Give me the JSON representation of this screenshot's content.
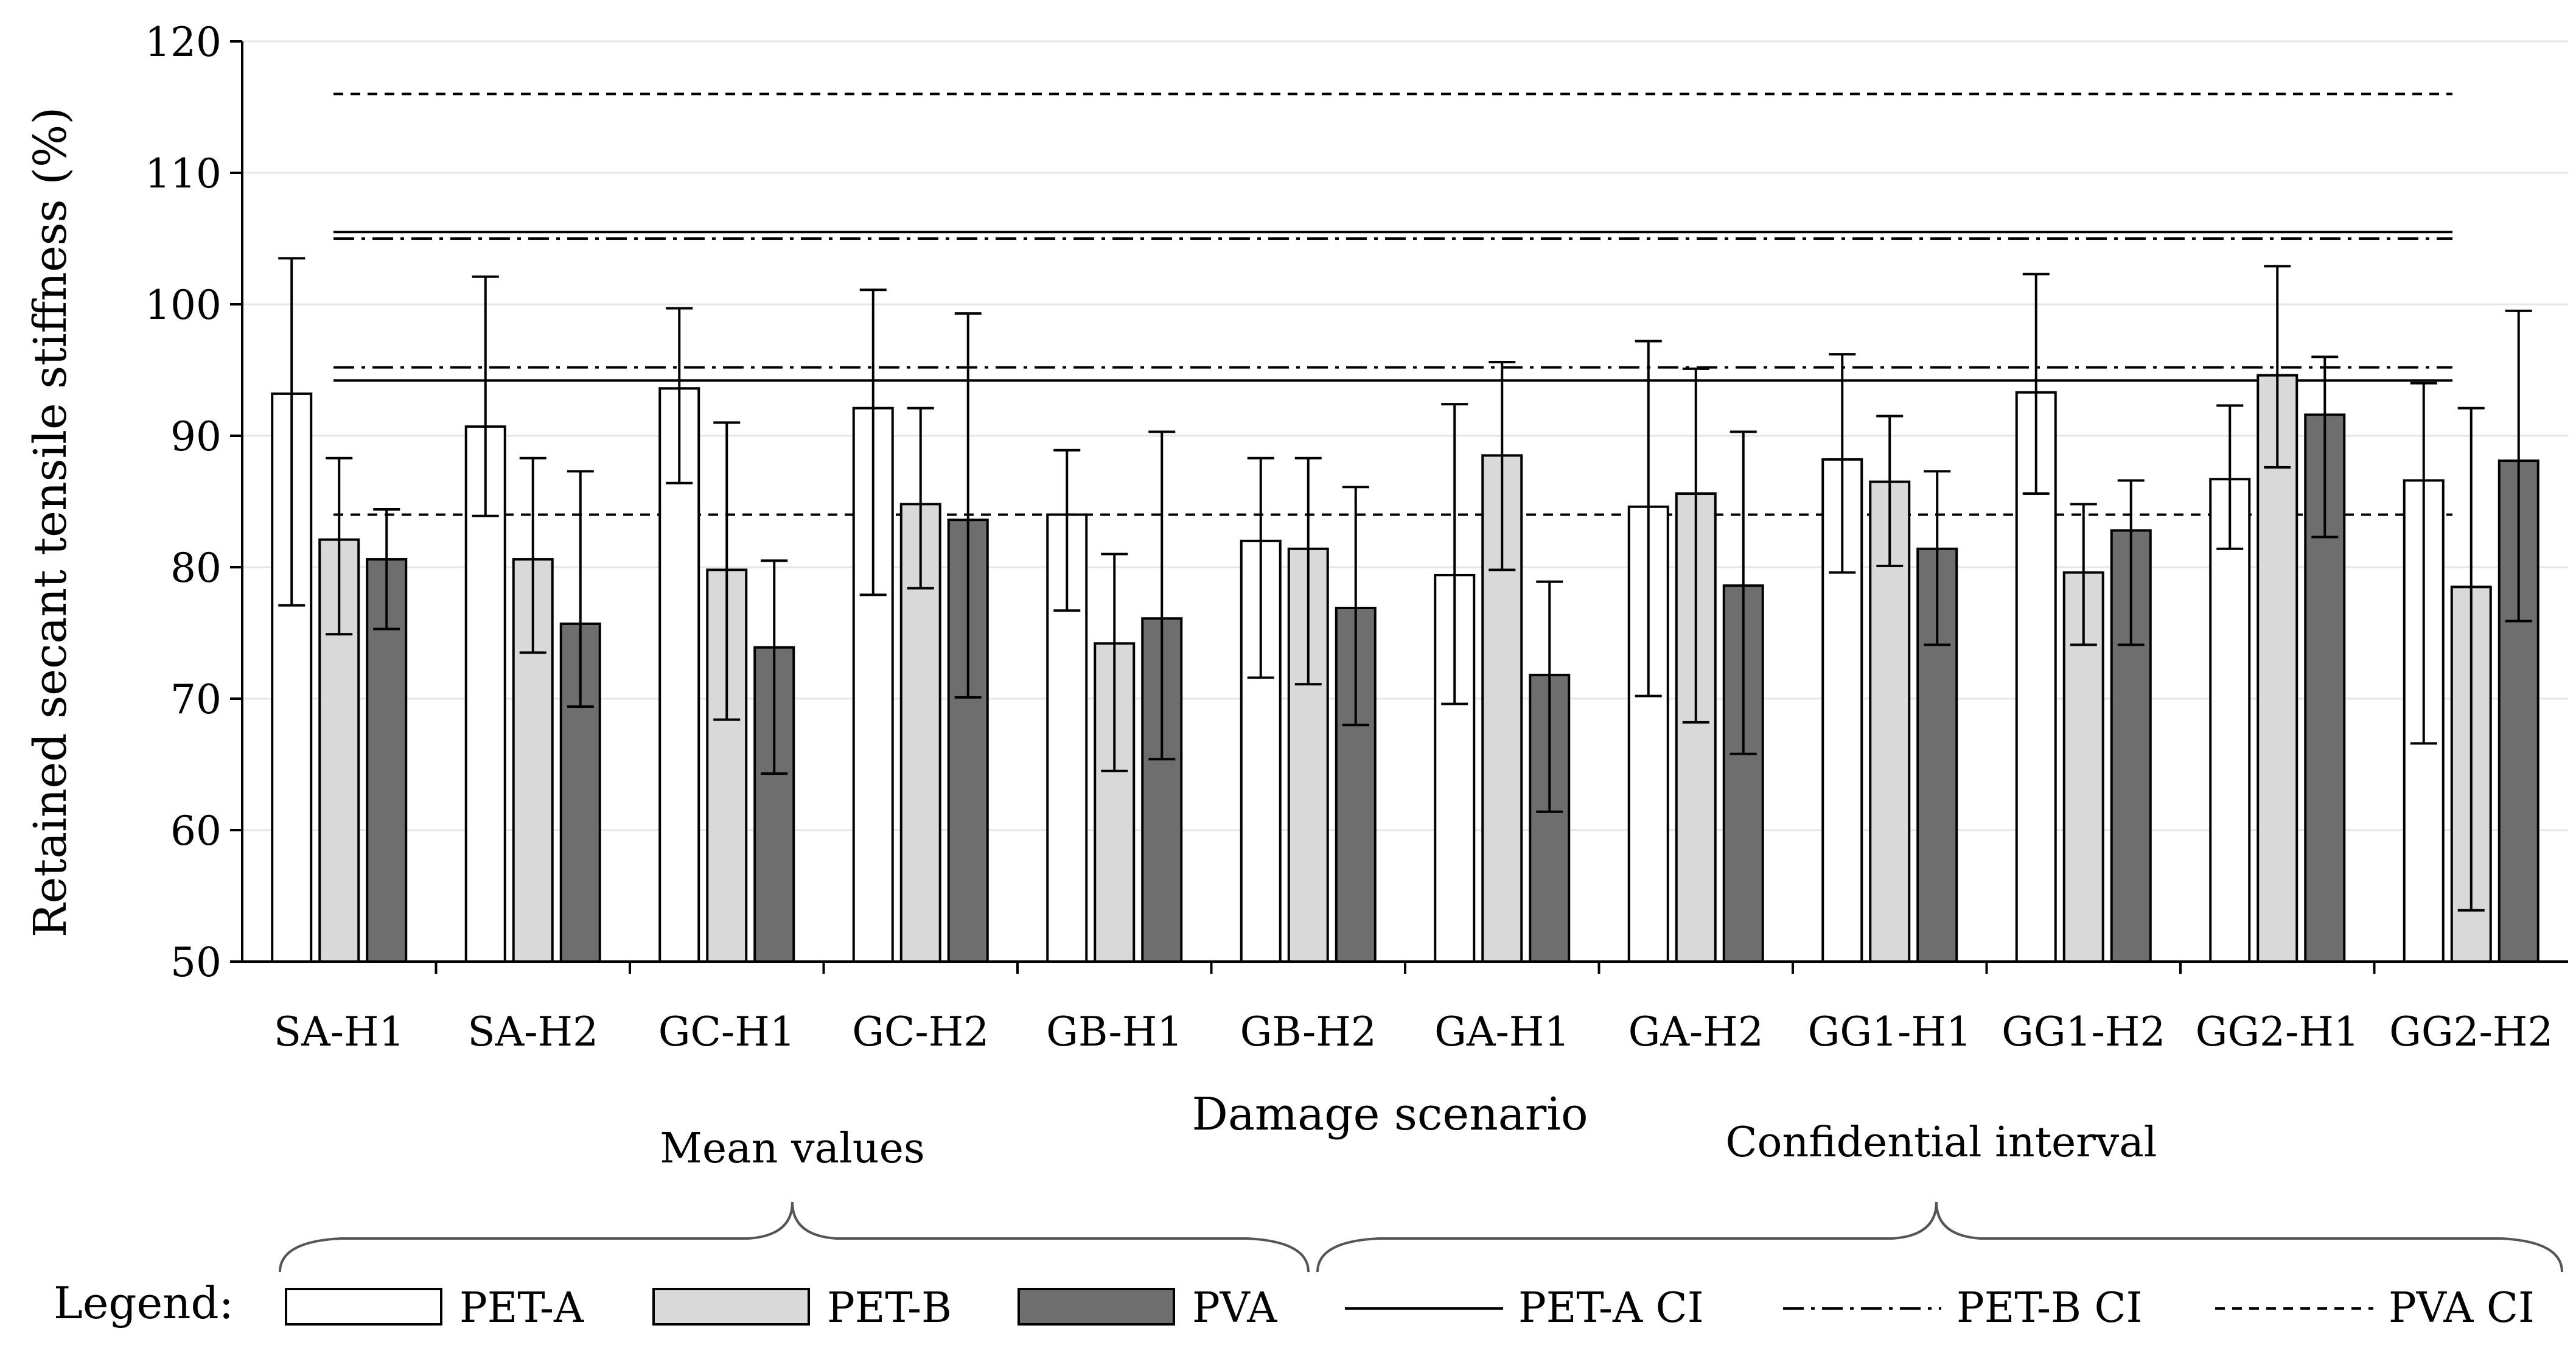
{
  "chart_data": {
    "type": "bar",
    "title": "",
    "xlabel": "Damage scenario",
    "ylabel": "Retained secant tensile stiffness (%)",
    "ylim": [
      50,
      120
    ],
    "yticks": [
      50,
      60,
      70,
      80,
      90,
      100,
      110,
      120
    ],
    "grid": true,
    "categories": [
      "SA-H1",
      "SA-H2",
      "GC-H1",
      "GC-H2",
      "GB-H1",
      "GB-H2",
      "GA-H1",
      "GA-H2",
      "GG1-H1",
      "GG1-H2",
      "GG2-H1",
      "GG2-H2"
    ],
    "series": [
      {
        "name": "PET-A",
        "color": "#ffffff",
        "values": [
          93.2,
          90.7,
          93.6,
          92.1,
          84.0,
          82.0,
          79.4,
          84.6,
          88.2,
          93.3,
          86.7,
          86.6
        ],
        "err_low": [
          77.1,
          83.9,
          86.4,
          77.9,
          76.7,
          71.6,
          69.6,
          70.2,
          79.6,
          85.6,
          81.4,
          66.6
        ],
        "err_high": [
          103.5,
          102.1,
          99.7,
          101.1,
          88.9,
          88.3,
          92.4,
          97.2,
          96.2,
          102.3,
          92.3,
          94.0
        ]
      },
      {
        "name": "PET-B",
        "color": "#d9d9d9",
        "values": [
          82.1,
          80.6,
          79.8,
          84.8,
          74.2,
          81.4,
          88.5,
          85.6,
          86.5,
          79.6,
          94.6,
          78.5
        ],
        "err_low": [
          74.9,
          73.5,
          68.4,
          78.4,
          64.5,
          71.1,
          79.8,
          68.2,
          80.1,
          74.1,
          87.6,
          53.9
        ],
        "err_high": [
          88.3,
          88.3,
          91.0,
          92.1,
          81.0,
          88.3,
          95.6,
          95.1,
          91.5,
          84.8,
          102.9,
          92.1
        ]
      },
      {
        "name": "PVA",
        "color": "#6e6e6e",
        "values": [
          80.6,
          75.7,
          73.9,
          83.6,
          76.1,
          76.9,
          71.8,
          78.6,
          81.4,
          82.8,
          91.6,
          88.1
        ],
        "err_low": [
          75.3,
          69.4,
          64.3,
          70.1,
          65.4,
          68.0,
          61.4,
          65.8,
          74.1,
          74.1,
          82.3,
          75.9
        ],
        "err_high": [
          84.4,
          87.3,
          80.5,
          99.3,
          90.3,
          86.1,
          78.9,
          90.3,
          87.3,
          86.6,
          96.0,
          99.5
        ]
      }
    ],
    "ci_lines": [
      {
        "name": "PET-A CI",
        "style": "solid",
        "values": [
          94.2,
          105.5
        ]
      },
      {
        "name": "PET-B CI",
        "style": "dashdot",
        "values": [
          95.2,
          105.0
        ]
      },
      {
        "name": "PVA CI",
        "style": "dashed",
        "values": [
          84.0,
          116.0
        ]
      }
    ],
    "annotations": {
      "mean_values": "Mean values",
      "confidential_interval": "Confidential interval"
    },
    "legend": {
      "title": "Legend:",
      "position": "bottom",
      "entries": [
        "PET-A",
        "PET-B",
        "PVA",
        "PET-A CI",
        "PET-B CI",
        "PVA CI"
      ]
    }
  }
}
